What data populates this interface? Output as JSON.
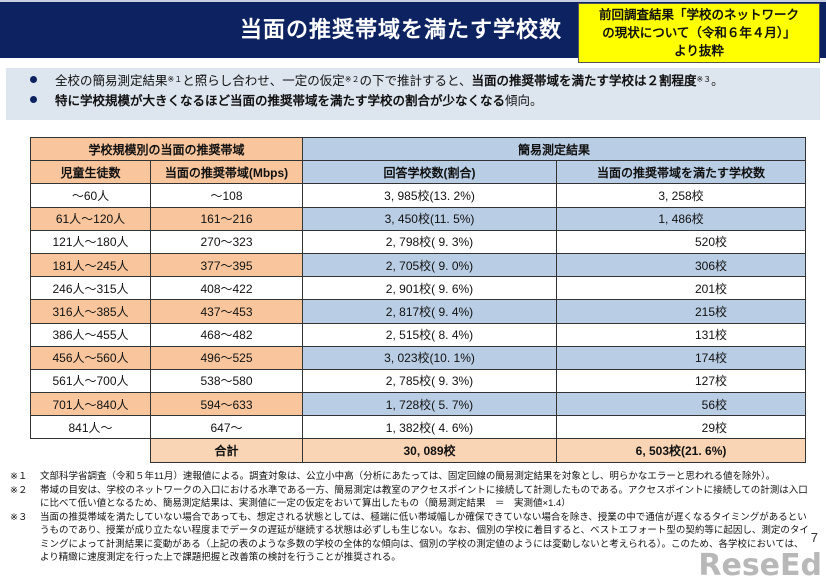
{
  "title": "当面の推奨帯域を満たす学校数",
  "source_note": [
    "前回調査結果「学校のネットワーク",
    "の現状について（令和６年４月）」",
    "より抜粋"
  ],
  "summary": {
    "b1": {
      "t1": "全校の簡易測定結果",
      "s1": "※１",
      "t2": "と照らし合わせ、一定の仮定",
      "s2": "※２",
      "t3": "の下で推計すると、",
      "bold": "当面の推奨帯域を満たす学校は２割程度",
      "s3": "※３",
      "t4": "。"
    },
    "b2": {
      "bold": "特に学校規模が大きくなるほど当面の推奨帯域を満たす学校の割合が少なくなる",
      "t": "傾向。"
    }
  },
  "table": {
    "group_left": "学校規模別の当面の推奨帯域",
    "group_right": "簡易測定結果",
    "headers": [
      "児童生徒数",
      "当面の推奨帯域(Mbps)",
      "回答学校数(割合)",
      "当面の推奨帯域を満たす学校数"
    ],
    "rows": [
      [
        "～60人",
        "～108",
        "3, 985校(13. 2%)",
        "3, 258校"
      ],
      [
        "61人～120人",
        "161～216",
        "3, 450校(11. 5%)",
        "1, 486校"
      ],
      [
        "121人～180人",
        "270～323",
        "2, 798校( 9. 3%)",
        "520校"
      ],
      [
        "181人～245人",
        "377～395",
        "2, 705校( 9. 0%)",
        "306校"
      ],
      [
        "246人～315人",
        "408～422",
        "2, 901校( 9. 6%)",
        "201校"
      ],
      [
        "316人～385人",
        "437～453",
        "2, 817校( 9. 4%)",
        "215校"
      ],
      [
        "386人～455人",
        "468～482",
        "2, 515校( 8. 4%)",
        "131校"
      ],
      [
        "456人～560人",
        "496～525",
        "3, 023校(10. 1%)",
        "174校"
      ],
      [
        "561人～700人",
        "538～580",
        "2, 785校( 9. 3%)",
        "127校"
      ],
      [
        "701人～840人",
        "594～633",
        "1, 728校( 5. 7%)",
        "56校"
      ],
      [
        "841人～",
        "647～",
        "1, 382校( 4. 6%)",
        "29校"
      ]
    ],
    "total": {
      "label": "合計",
      "responded": "30, 089校",
      "meeting": "6, 503校(21. 6%)"
    }
  },
  "notes": [
    {
      "key": "※１",
      "text": "文部科学省調査（令和５年11月）速報値による。調査対象は、公立小中高（分析にあたっては、固定回線の簡易測定結果を対象とし、明らかなエラーと思われる値を除外）。"
    },
    {
      "key": "※２",
      "text": "帯域の目安は、学校のネットワークの入口における水準である一方、簡易測定は教室のアクセスポイントに接続して計測したものである。アクセスポイントに接続しての計測は入口に比べて低い値となるため、簡易測定結果は、実測値に一定の仮定をおいて算出したもの（簡易測定結果　＝　実測値×1.4）"
    },
    {
      "key": "※３",
      "text": "当面の推奨帯域を満たしていない場合であっても、想定される状態としては、極端に低い帯域幅しか確保できていない場合を除き、授業の中で通信が遅くなるタイミングがあるというものであり、授業が成り立たない程度までデータの遅延が継続する状態は必ずしも生じない。なお、個別の学校に着目すると、ベストエフォート型の契約等に起因し、測定のタイミングによって計測結果に変動がある（上記の表のような多数の学校の全体的な傾向は、個別の学校の測定値のようには変動しないと考えられる）。このため、各学校においては、より精緻に速度測定を行った上で課題把握と改善策の検討を行うことが推奨される。"
    }
  ],
  "page_number": "7",
  "watermark": "ReseEd"
}
